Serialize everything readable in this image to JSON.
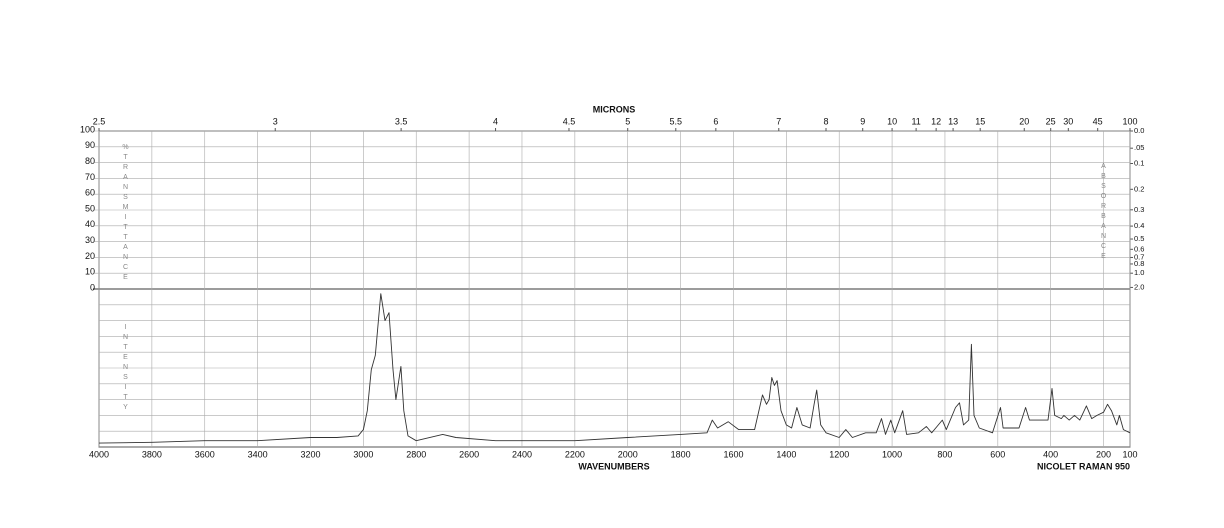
{
  "chart_data": {
    "type": "line",
    "top_axis_label": "MICRONS",
    "x_label": "WAVENUMBERS",
    "instrument": "NICOLET RAMAN 950",
    "y_label": "%TRANSMITTANCE",
    "y2_label": "ABSORBANCE",
    "intensity_label": "INTENSITY",
    "xlim": [
      4000,
      100
    ],
    "xticks": [
      4000,
      3800,
      3600,
      3400,
      3200,
      3000,
      2800,
      2600,
      2400,
      2200,
      2000,
      1800,
      1600,
      1400,
      1200,
      1000,
      800,
      600,
      400,
      200,
      100
    ],
    "x2ticks": [
      2.5,
      3,
      3.5,
      4,
      4.5,
      5,
      5.5,
      6,
      7,
      8,
      9,
      10,
      11,
      12,
      13,
      15,
      20,
      25,
      30,
      45,
      100
    ],
    "ylim": [
      0,
      100
    ],
    "yticks": [
      0,
      10,
      20,
      30,
      40,
      50,
      60,
      70,
      80,
      90,
      100
    ],
    "y2ticks": [
      {
        "value": 0,
        "label": "0.0"
      },
      {
        "value": 0.05,
        "label": ".05"
      },
      0.1,
      0.2,
      0.3,
      0.4,
      0.5,
      0.6,
      0.7,
      0.8,
      {
        "value": 1,
        "label": "1.0"
      },
      {
        "value": 2,
        "label": "2.0"
      }
    ],
    "intensity_lim": [
      0,
      100
    ],
    "grid": true,
    "color": "#333333",
    "x": [
      4000,
      3800,
      3600,
      3400,
      3200,
      3100,
      3020,
      3000,
      2985,
      2970,
      2955,
      2934,
      2918,
      2903,
      2888,
      2877,
      2858,
      2847,
      2831,
      2800,
      2700,
      2650,
      2500,
      2200,
      2000,
      1800,
      1700,
      1680,
      1660,
      1620,
      1580,
      1520,
      1490,
      1475,
      1465,
      1455,
      1445,
      1435,
      1420,
      1400,
      1380,
      1360,
      1340,
      1310,
      1295,
      1285,
      1270,
      1250,
      1200,
      1175,
      1150,
      1100,
      1060,
      1040,
      1025,
      1005,
      990,
      960,
      945,
      900,
      870,
      850,
      830,
      810,
      795,
      760,
      745,
      730,
      710,
      700,
      690,
      670,
      620,
      590,
      580,
      520,
      495,
      480,
      410,
      395,
      385,
      360,
      350,
      330,
      310,
      290,
      265,
      245,
      225,
      200,
      185,
      170,
      150,
      140,
      125,
      100
    ],
    "values": [
      2.5,
      3,
      4,
      4,
      6,
      6,
      7,
      11,
      23,
      49,
      58,
      97,
      80,
      85,
      49,
      30,
      51,
      23,
      7,
      4,
      8,
      6,
      4,
      4,
      6,
      8,
      9,
      17,
      12,
      16,
      11,
      11,
      33,
      27,
      30,
      44,
      39,
      42,
      23,
      14,
      12,
      25,
      14,
      12,
      27,
      36,
      14,
      9,
      6,
      11,
      6,
      9,
      9,
      18,
      8,
      17,
      9,
      23,
      8,
      9,
      13,
      9,
      13,
      17,
      11,
      25,
      28,
      14,
      17,
      65,
      20,
      12,
      9,
      25,
      12,
      12,
      25,
      17,
      17,
      37,
      20,
      18,
      20,
      17,
      20,
      17,
      26,
      18,
      20,
      22,
      27,
      23,
      14,
      20,
      11,
      9
    ]
  }
}
